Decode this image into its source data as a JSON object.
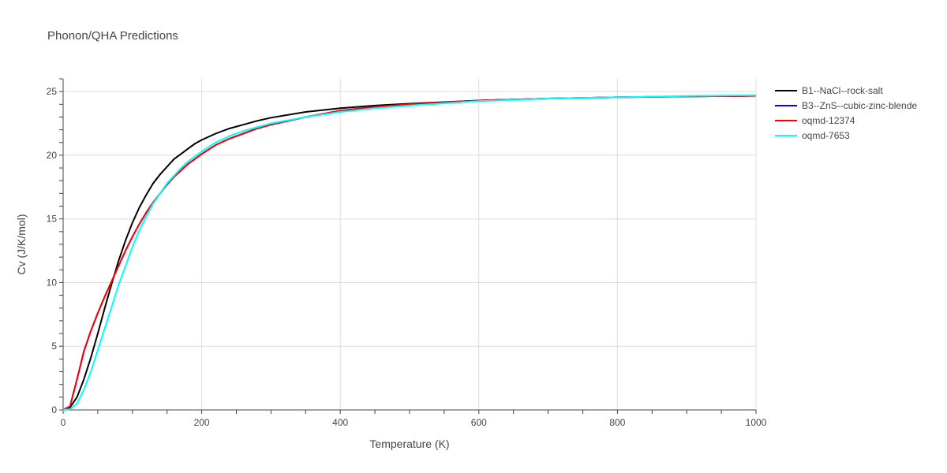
{
  "chart_data": {
    "type": "line",
    "title": "Phonon/QHA Predictions",
    "xlabel": "Temperature (K)",
    "ylabel": "Cv (J/K/mol)",
    "xlim": [
      0,
      1000
    ],
    "ylim": [
      0,
      26
    ],
    "xticks": [
      0,
      200,
      400,
      600,
      800,
      1000
    ],
    "yticks": [
      0,
      5,
      10,
      15,
      20,
      25
    ],
    "grid": true,
    "legend_position": "right",
    "series": [
      {
        "name": "B1--NaCl--rock-salt",
        "color": "#000000",
        "x": [
          0,
          10,
          20,
          30,
          40,
          50,
          60,
          70,
          80,
          90,
          100,
          110,
          120,
          130,
          140,
          150,
          160,
          170,
          180,
          190,
          200,
          220,
          240,
          260,
          280,
          300,
          350,
          400,
          450,
          500,
          600,
          700,
          800,
          900,
          1000
        ],
        "y": [
          0,
          0.2,
          1.0,
          2.4,
          4.1,
          6.0,
          8.0,
          9.9,
          11.7,
          13.3,
          14.7,
          15.9,
          16.9,
          17.8,
          18.5,
          19.1,
          19.7,
          20.1,
          20.5,
          20.9,
          21.2,
          21.7,
          22.1,
          22.4,
          22.7,
          22.95,
          23.4,
          23.7,
          23.9,
          24.05,
          24.3,
          24.45,
          24.55,
          24.62,
          24.67
        ]
      },
      {
        "name": "B3--ZnS--cubic-zinc-blende",
        "color": "#0000ff",
        "x": [
          0,
          10,
          20,
          30,
          40,
          50,
          60,
          70,
          80,
          90,
          100,
          110,
          120,
          130,
          140,
          150,
          160,
          170,
          180,
          190,
          200,
          220,
          240,
          260,
          280,
          300,
          350,
          400,
          450,
          500,
          600,
          700,
          800,
          900,
          1000
        ],
        "y": [
          0,
          0.3,
          2.4,
          4.6,
          6.2,
          7.6,
          8.9,
          10.1,
          11.3,
          12.5,
          13.6,
          14.6,
          15.5,
          16.3,
          17.0,
          17.7,
          18.3,
          18.8,
          19.3,
          19.7,
          20.1,
          20.8,
          21.3,
          21.7,
          22.1,
          22.4,
          23.0,
          23.5,
          23.8,
          24.0,
          24.3,
          24.45,
          24.55,
          24.62,
          24.67
        ]
      },
      {
        "name": "oqmd-12374",
        "color": "#ff0000",
        "x": [
          0,
          10,
          20,
          30,
          40,
          50,
          60,
          70,
          80,
          90,
          100,
          110,
          120,
          130,
          140,
          150,
          160,
          170,
          180,
          190,
          200,
          220,
          240,
          260,
          280,
          300,
          350,
          400,
          450,
          500,
          600,
          700,
          800,
          900,
          1000
        ],
        "y": [
          0,
          0.3,
          2.4,
          4.6,
          6.2,
          7.6,
          8.9,
          10.1,
          11.3,
          12.5,
          13.6,
          14.6,
          15.5,
          16.3,
          17.0,
          17.7,
          18.3,
          18.8,
          19.3,
          19.7,
          20.1,
          20.8,
          21.3,
          21.7,
          22.1,
          22.4,
          23.0,
          23.5,
          23.8,
          24.0,
          24.3,
          24.45,
          24.55,
          24.62,
          24.67
        ]
      },
      {
        "name": "oqmd-7653",
        "color": "#00ffff",
        "x": [
          0,
          10,
          20,
          30,
          40,
          50,
          60,
          70,
          80,
          90,
          100,
          110,
          120,
          130,
          140,
          150,
          160,
          170,
          180,
          190,
          200,
          220,
          240,
          260,
          280,
          300,
          350,
          400,
          450,
          500,
          600,
          700,
          800,
          900,
          1000
        ],
        "y": [
          0,
          0.05,
          0.5,
          1.6,
          3.0,
          4.7,
          6.4,
          8.1,
          9.8,
          11.3,
          12.8,
          14.1,
          15.2,
          16.2,
          17.0,
          17.8,
          18.4,
          19.0,
          19.5,
          19.9,
          20.3,
          21.0,
          21.5,
          21.9,
          22.2,
          22.5,
          23.0,
          23.4,
          23.7,
          23.9,
          24.25,
          24.45,
          24.55,
          24.65,
          24.72
        ]
      }
    ]
  }
}
